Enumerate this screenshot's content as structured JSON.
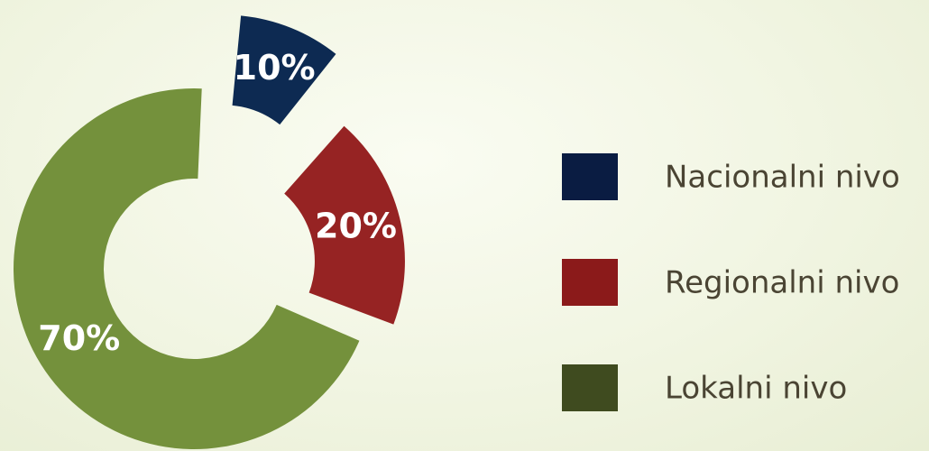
{
  "chart_data": {
    "type": "pie",
    "donut": true,
    "exploded": true,
    "categories": [
      "Nacionalni nivo",
      "Regionalni nivo",
      "Lokalni nivo"
    ],
    "values": [
      10,
      20,
      70
    ],
    "value_labels": [
      "10%",
      "20%",
      "70%"
    ],
    "slice_colors": [
      "#0d2a52",
      "#962323",
      "#74913c"
    ],
    "legend_colors": [
      "#0a1c42",
      "#8b1a1a",
      "#3f4b1f"
    ],
    "legend_position": "right",
    "title": ""
  }
}
